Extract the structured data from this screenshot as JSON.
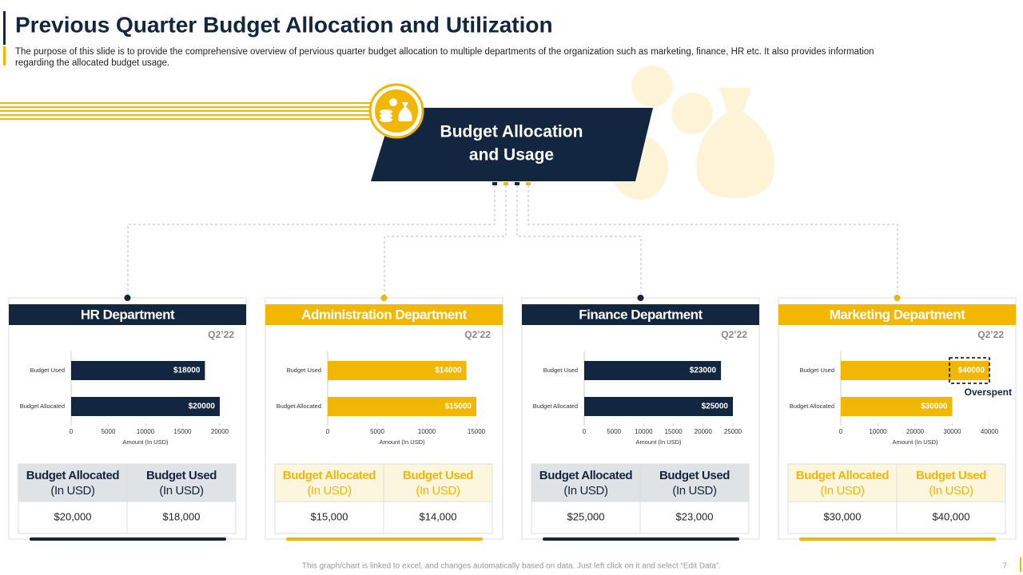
{
  "header": {
    "title": "Previous Quarter Budget Allocation and Utilization",
    "description": [
      "The purpose of this slide is to provide the comprehensive overview of pervious quarter budget allocation to multiple departments of the organization such as marketing, finance, HR etc. It also provides information",
      "regarding the allocated budget usage."
    ]
  },
  "center": {
    "title": [
      "Budget Allocation",
      "and Usage"
    ]
  },
  "chart_data": [
    {
      "type": "bar",
      "title": "HR Department",
      "subtitle": "Q2’22",
      "categories": [
        "Budget Used",
        "Budget Allocated"
      ],
      "values": [
        18000,
        20000
      ],
      "value_labels": [
        "$18000",
        "$20000"
      ],
      "color": "#12263f",
      "xlabel": "Amount (In USD)",
      "xlim": [
        0,
        20000
      ],
      "xticks": [
        0,
        5000,
        10000,
        15000,
        20000
      ]
    },
    {
      "type": "bar",
      "title": "Administration Department",
      "subtitle": "Q2’22",
      "categories": [
        "Budget Used",
        "Budget Allocated"
      ],
      "values": [
        14000,
        15000
      ],
      "value_labels": [
        "$14000",
        "$15000"
      ],
      "color": "#f2b705",
      "xlabel": "Amount (In USD)",
      "xlim": [
        0,
        15000
      ],
      "xticks": [
        0,
        5000,
        10000,
        15000
      ]
    },
    {
      "type": "bar",
      "title": "Finance Department",
      "subtitle": "Q2’22",
      "categories": [
        "Budget Used",
        "Budget Allocated"
      ],
      "values": [
        23000,
        25000
      ],
      "value_labels": [
        "$23000",
        "$25000"
      ],
      "color": "#12263f",
      "xlabel": "Amount (In USD)",
      "xlim": [
        0,
        25000
      ],
      "xticks": [
        0,
        5000,
        10000,
        15000,
        20000,
        25000
      ]
    },
    {
      "type": "bar",
      "title": "Marketing Department",
      "subtitle": "Q2’22",
      "categories": [
        "Budget Used",
        "Budget Allocated"
      ],
      "values": [
        40000,
        30000
      ],
      "value_labels": [
        "$40000",
        "$30000"
      ],
      "color": "#f2b705",
      "xlabel": "Amount (In USD)",
      "xlim": [
        0,
        40000
      ],
      "xticks": [
        0,
        10000,
        20000,
        30000,
        40000
      ],
      "annotation": "Overspent"
    }
  ],
  "tables": [
    {
      "header": [
        [
          "Budget Allocated",
          "(In USD)"
        ],
        [
          "Budget Used",
          "(In USD)"
        ]
      ],
      "rows": [
        [
          "$20,000",
          "$18,000"
        ]
      ]
    },
    {
      "header": [
        [
          "Budget Allocated",
          "(In USD)"
        ],
        [
          "Budget Used",
          "(In USD)"
        ]
      ],
      "rows": [
        [
          "$15,000",
          "$14,000"
        ]
      ]
    },
    {
      "header": [
        [
          "Budget Allocated",
          "(In USD)"
        ],
        [
          "Budget Used",
          "(In USD)"
        ]
      ],
      "rows": [
        [
          "$25,000",
          "$23,000"
        ]
      ]
    },
    {
      "header": [
        [
          "Budget Allocated",
          "(In USD)"
        ],
        [
          "Budget Used",
          "(In USD)"
        ]
      ],
      "rows": [
        [
          "$30,000",
          "$40,000"
        ]
      ]
    }
  ],
  "footer": {
    "note": "This graph/chart is linked to excel, and changes automatically based on data. Just left click on it and select “Edit Data”.",
    "page": "7"
  }
}
